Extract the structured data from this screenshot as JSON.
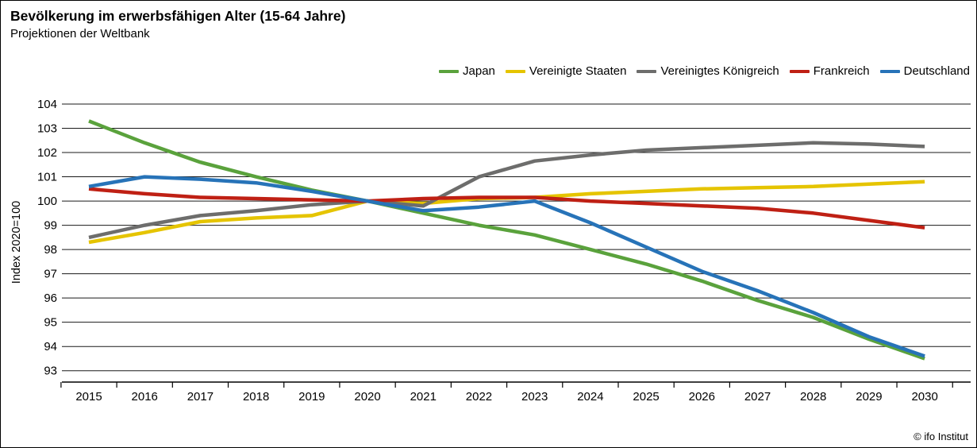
{
  "header": {
    "title": "Bevölkerung im erwerbsfähigen Alter (15-64 Jahre)",
    "subtitle": "Projektionen der Weltbank"
  },
  "footer": {
    "copyright": "© ifo Institut"
  },
  "chart_data": {
    "type": "line",
    "title": "Bevölkerung im erwerbsfähigen Alter (15-64 Jahre)",
    "subtitle": "Projektionen der Weltbank",
    "y_axis_title": "Index 2020=100",
    "x": [
      "2015",
      "2016",
      "2017",
      "2018",
      "2019",
      "2020",
      "2021",
      "2022",
      "2023",
      "2024",
      "2025",
      "2026",
      "2027",
      "2028",
      "2029",
      "2030"
    ],
    "ylim": [
      93,
      104
    ],
    "y_tick_step": 1,
    "grid": "horizontal",
    "legend_position": "top-right",
    "series": [
      {
        "name": "Japan",
        "color": "#5aa23c",
        "values": [
          103.3,
          102.4,
          101.6,
          101.0,
          100.45,
          100,
          99.5,
          99.0,
          98.6,
          98.0,
          97.4,
          96.7,
          95.9,
          95.2,
          94.3,
          93.5
        ]
      },
      {
        "name": "Vereinigte Staaten",
        "color": "#e5c400",
        "values": [
          98.3,
          98.7,
          99.15,
          99.3,
          99.4,
          100,
          99.9,
          100.1,
          100.15,
          100.3,
          100.4,
          100.5,
          100.55,
          100.6,
          100.7,
          100.8
        ]
      },
      {
        "name": "Vereinigtes Königreich",
        "color": "#6d6d6c",
        "values": [
          98.5,
          99.0,
          99.4,
          99.6,
          99.85,
          100,
          99.8,
          101.0,
          101.65,
          101.9,
          102.1,
          102.2,
          102.3,
          102.4,
          102.35,
          102.25
        ]
      },
      {
        "name": "Frankreich",
        "color": "#bf2014",
        "values": [
          100.5,
          100.3,
          100.15,
          100.1,
          100.05,
          100,
          100.1,
          100.15,
          100.15,
          100.0,
          99.9,
          99.8,
          99.7,
          99.5,
          99.2,
          98.9
        ]
      },
      {
        "name": "Deutschland",
        "color": "#2773b8",
        "values": [
          100.6,
          101.0,
          100.9,
          100.75,
          100.4,
          100,
          99.6,
          99.75,
          100.0,
          99.1,
          98.1,
          97.1,
          96.3,
          95.4,
          94.4,
          93.6
        ]
      }
    ]
  }
}
